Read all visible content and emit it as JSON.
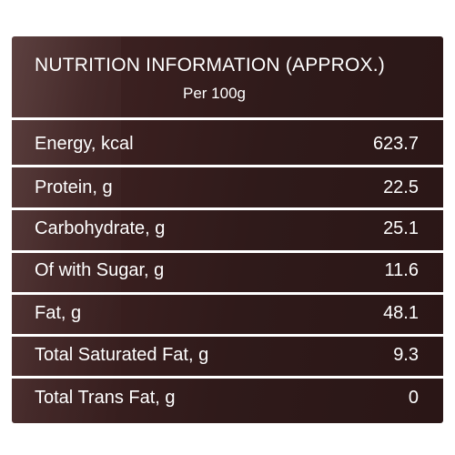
{
  "panel": {
    "title": "NUTRITION INFORMATION (APPROX.)",
    "subtitle": "Per 100g"
  },
  "rows": [
    {
      "label": "Energy, kcal",
      "value": "623.7"
    },
    {
      "label": "Protein, g",
      "value": "22.5"
    },
    {
      "label": "Carbohydrate, g",
      "value": "25.1"
    },
    {
      "label": "Of with Sugar, g",
      "value": "11.6"
    },
    {
      "label": "Fat, g",
      "value": "48.1"
    },
    {
      "label": "Total Saturated Fat, g",
      "value": "9.3"
    },
    {
      "label": "Total Trans Fat, g",
      "value": "0"
    }
  ],
  "colors": {
    "panel_background": "#2f1a1a",
    "text": "#ffffff",
    "page_background": "#ffffff"
  }
}
